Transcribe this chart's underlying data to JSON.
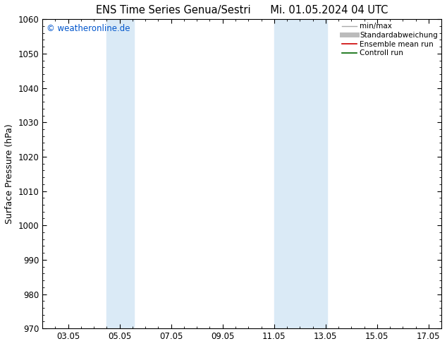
{
  "title_left": "ENS Time Series Genua/Sestri",
  "title_right": "Mi. 01.05.2024 04 UTC",
  "ylabel": "Surface Pressure (hPa)",
  "ylim": [
    970,
    1060
  ],
  "yticks": [
    970,
    980,
    990,
    1000,
    1010,
    1020,
    1030,
    1040,
    1050,
    1060
  ],
  "xtick_labels": [
    "03.05",
    "05.05",
    "07.05",
    "09.05",
    "11.05",
    "13.05",
    "15.05",
    "17.05"
  ],
  "xtick_positions": [
    3,
    5,
    7,
    9,
    11,
    13,
    15,
    17
  ],
  "xlim": [
    2.0,
    17.5
  ],
  "shaded_bands": [
    {
      "xmin": 4.5,
      "xmax": 5.55,
      "color": "#daeaf6"
    },
    {
      "xmin": 11.0,
      "xmax": 13.05,
      "color": "#daeaf6"
    }
  ],
  "watermark": "© weatheronline.de",
  "watermark_color": "#0055cc",
  "background_color": "#ffffff",
  "plot_bg_color": "#ffffff",
  "border_color": "#000000",
  "legend_items": [
    {
      "label": "min/max",
      "color": "#aaaaaa",
      "lw": 1.0
    },
    {
      "label": "Standardabweichung",
      "color": "#bbbbbb",
      "lw": 5
    },
    {
      "label": "Ensemble mean run",
      "color": "#cc0000",
      "lw": 1.2
    },
    {
      "label": "Controll run",
      "color": "#006600",
      "lw": 1.2
    }
  ],
  "title_fontsize": 10.5,
  "tick_fontsize": 8.5,
  "ylabel_fontsize": 9,
  "watermark_fontsize": 8.5
}
